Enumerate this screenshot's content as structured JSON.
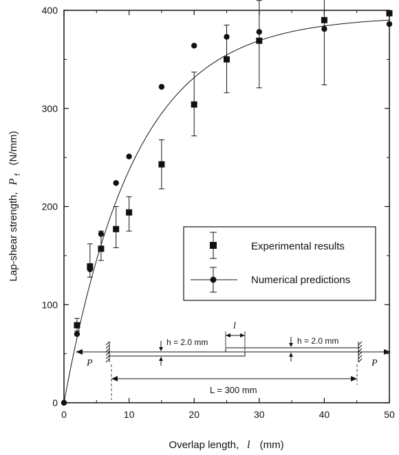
{
  "chart_data": {
    "type": "scatter",
    "xlabel": "Overlap length,",
    "xlabel_symbol": "l",
    "xlabel_unit": "(mm)",
    "ylabel": "Lap-shear strength,",
    "ylabel_symbol": "P",
    "ylabel_subscript": "f",
    "ylabel_unit": "(N/mm)",
    "xlim": [
      0,
      50
    ],
    "ylim": [
      0,
      400
    ],
    "x_ticks": [
      0,
      10,
      20,
      30,
      40,
      50
    ],
    "y_ticks": [
      0,
      100,
      200,
      300,
      400
    ],
    "grid": false,
    "legend_position": "middle-right",
    "series": [
      {
        "name": "Experimental results",
        "marker": "square",
        "points": [
          {
            "x": 2,
            "y": 79,
            "err_low": 73,
            "err_high": 86
          },
          {
            "x": 4,
            "y": 139,
            "err_low": 128,
            "err_high": 162
          },
          {
            "x": 5.7,
            "y": 157,
            "err_low": 145,
            "err_high": 175
          },
          {
            "x": 8,
            "y": 177,
            "err_low": 158,
            "err_high": 200
          },
          {
            "x": 10,
            "y": 194,
            "err_low": 175,
            "err_high": 210
          },
          {
            "x": 15,
            "y": 243,
            "err_low": 218,
            "err_high": 268
          },
          {
            "x": 20,
            "y": 304,
            "err_low": 272,
            "err_high": 337
          },
          {
            "x": 25,
            "y": 350,
            "err_low": 316,
            "err_high": 385
          },
          {
            "x": 30,
            "y": 369,
            "err_low": 321,
            "err_high": 410
          },
          {
            "x": 40,
            "y": 390,
            "err_low": 324,
            "err_high": 441
          },
          {
            "x": 50,
            "y": 397,
            "err_low": 397,
            "err_high": 397
          }
        ]
      },
      {
        "name": "Numerical predictions",
        "marker": "circle",
        "curve": "exponential",
        "points": [
          {
            "x": 0,
            "y": 0
          },
          {
            "x": 2,
            "y": 70
          },
          {
            "x": 4,
            "y": 136
          },
          {
            "x": 5.7,
            "y": 172
          },
          {
            "x": 8,
            "y": 224
          },
          {
            "x": 10,
            "y": 251
          },
          {
            "x": 15,
            "y": 322
          },
          {
            "x": 20,
            "y": 364
          },
          {
            "x": 25,
            "y": 373
          },
          {
            "x": 30,
            "y": 378
          },
          {
            "x": 40,
            "y": 381
          },
          {
            "x": 50,
            "y": 386
          }
        ],
        "curve_params": {
          "plateau": 394,
          "decay": 0.092
        }
      }
    ],
    "inset": {
      "load_left": "P",
      "load_right": "P",
      "thickness_left": "h = 2.0 mm",
      "thickness_right": "h = 2.0 mm",
      "overlap_symbol": "l",
      "length": "L = 300 mm"
    }
  }
}
